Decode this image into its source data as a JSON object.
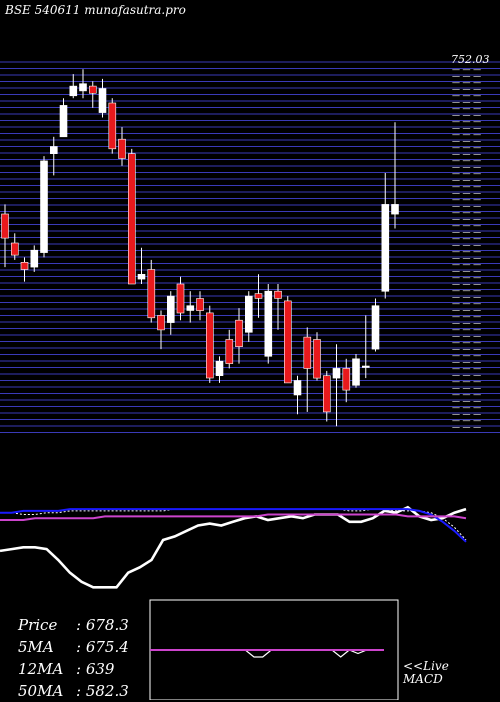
{
  "header": {
    "title": "BSE 540611 munafasutra.pro"
  },
  "chart_data": [
    {
      "type": "candlestick",
      "title": "BSE 540611 munafasutra.pro",
      "price_top_label": "752.03",
      "candles": [
        {
          "o": 712,
          "h": 716,
          "l": 690,
          "c": 702,
          "color": "red"
        },
        {
          "o": 700,
          "h": 704,
          "l": 693,
          "c": 695,
          "color": "red"
        },
        {
          "o": 692,
          "h": 694,
          "l": 684,
          "c": 689,
          "color": "red"
        },
        {
          "o": 690,
          "h": 699,
          "l": 688,
          "c": 697,
          "color": "white"
        },
        {
          "o": 696,
          "h": 736,
          "l": 694,
          "c": 734,
          "color": "white"
        },
        {
          "o": 737,
          "h": 744,
          "l": 728,
          "c": 740,
          "color": "white"
        },
        {
          "o": 744,
          "h": 760,
          "l": 744,
          "c": 757,
          "color": "white"
        },
        {
          "o": 761,
          "h": 770,
          "l": 760,
          "c": 765,
          "color": "white"
        },
        {
          "o": 763,
          "h": 772,
          "l": 760,
          "c": 766,
          "color": "white"
        },
        {
          "o": 765,
          "h": 767,
          "l": 756,
          "c": 762,
          "color": "red"
        },
        {
          "o": 764,
          "h": 768,
          "l": 752,
          "c": 754,
          "color": "white"
        },
        {
          "o": 758,
          "h": 760,
          "l": 737,
          "c": 739,
          "color": "red"
        },
        {
          "o": 743,
          "h": 748,
          "l": 732,
          "c": 735,
          "color": "red"
        },
        {
          "o": 737,
          "h": 739,
          "l": 683,
          "c": 683,
          "color": "red"
        },
        {
          "o": 685,
          "h": 698,
          "l": 683,
          "c": 687,
          "color": "white"
        },
        {
          "o": 689,
          "h": 693,
          "l": 667,
          "c": 669,
          "color": "red"
        },
        {
          "o": 670,
          "h": 672,
          "l": 656,
          "c": 664,
          "color": "red"
        },
        {
          "o": 667,
          "h": 680,
          "l": 662,
          "c": 678,
          "color": "white"
        },
        {
          "o": 683,
          "h": 686,
          "l": 668,
          "c": 671,
          "color": "red"
        },
        {
          "o": 672,
          "h": 680,
          "l": 667,
          "c": 674,
          "color": "white"
        },
        {
          "o": 677,
          "h": 680,
          "l": 668,
          "c": 672,
          "color": "red"
        },
        {
          "o": 671,
          "h": 674,
          "l": 642,
          "c": 644,
          "color": "red"
        },
        {
          "o": 645,
          "h": 653,
          "l": 642,
          "c": 651,
          "color": "white"
        },
        {
          "o": 660,
          "h": 664,
          "l": 648,
          "c": 650,
          "color": "red"
        },
        {
          "o": 657,
          "h": 673,
          "l": 650,
          "c": 668,
          "color": "red"
        },
        {
          "o": 663,
          "h": 680,
          "l": 659,
          "c": 678,
          "color": "white"
        },
        {
          "o": 679,
          "h": 687,
          "l": 669,
          "c": 677,
          "color": "red"
        },
        {
          "o": 653,
          "h": 683,
          "l": 650,
          "c": 680,
          "color": "white"
        },
        {
          "o": 680,
          "h": 683,
          "l": 664,
          "c": 677,
          "color": "red"
        },
        {
          "o": 676,
          "h": 678,
          "l": 642,
          "c": 642,
          "color": "red"
        },
        {
          "o": 643,
          "h": 645,
          "l": 629,
          "c": 637,
          "color": "white"
        },
        {
          "o": 661,
          "h": 665,
          "l": 630,
          "c": 648,
          "color": "red"
        },
        {
          "o": 660,
          "h": 663,
          "l": 643,
          "c": 644,
          "color": "red"
        },
        {
          "o": 645,
          "h": 647,
          "l": 626,
          "c": 630,
          "color": "red"
        },
        {
          "o": 644,
          "h": 658,
          "l": 624,
          "c": 648,
          "color": "white"
        },
        {
          "o": 648,
          "h": 652,
          "l": 634,
          "c": 639,
          "color": "red"
        },
        {
          "o": 641,
          "h": 654,
          "l": 640,
          "c": 652,
          "color": "white"
        },
        {
          "o": 649,
          "h": 670,
          "l": 644,
          "c": 649,
          "color": "white"
        },
        {
          "o": 656,
          "h": 677,
          "l": 655,
          "c": 674,
          "color": "white"
        },
        {
          "o": 680,
          "h": 729,
          "l": 677,
          "c": 716,
          "color": "white"
        },
        {
          "o": 712,
          "h": 750,
          "l": 706,
          "c": 716,
          "color": "white"
        }
      ]
    },
    {
      "type": "line",
      "series": [
        {
          "color": "#ffffff",
          "values": [
            547,
            548,
            549,
            549,
            548,
            542,
            535,
            530,
            527,
            527,
            527,
            535,
            538,
            542,
            553,
            555,
            558,
            561,
            562,
            561,
            563,
            565,
            566,
            564,
            565,
            566,
            565,
            567,
            567,
            567,
            563,
            563,
            565,
            569,
            568,
            571,
            566,
            564,
            565,
            568,
            570
          ]
        },
        {
          "color": "#ffffff",
          "dashed": true,
          "values": [
            568,
            568,
            567,
            567,
            568,
            568,
            569,
            569,
            569,
            569,
            569,
            569,
            569,
            569,
            569,
            570,
            570,
            570,
            570,
            570,
            570,
            570,
            570,
            570,
            570,
            570,
            570,
            570,
            570,
            570,
            569,
            569,
            570,
            570,
            569,
            569,
            569,
            568,
            565,
            560,
            553
          ]
        },
        {
          "color": "#1a1aff",
          "values": [
            568,
            568,
            569,
            569,
            569,
            569,
            570,
            570,
            570,
            570,
            570,
            570,
            570,
            570,
            570,
            570,
            570,
            570,
            570,
            570,
            570,
            570,
            570,
            570,
            570,
            570,
            570,
            570,
            570,
            570,
            570,
            570,
            570,
            570,
            570,
            570,
            569,
            567,
            563,
            558,
            552
          ]
        },
        {
          "color": "#cc44cc",
          "values": [
            564,
            564,
            564,
            565,
            565,
            565,
            565,
            565,
            565,
            566,
            566,
            566,
            566,
            566,
            566,
            566,
            566,
            566,
            566,
            566,
            566,
            566,
            566,
            567,
            567,
            567,
            567,
            567,
            567,
            567,
            567,
            567,
            567,
            567,
            567,
            566,
            566,
            566,
            566,
            566,
            565
          ]
        }
      ]
    },
    {
      "type": "line",
      "series": [
        {
          "color": "#ffffff",
          "values": [
            0,
            0,
            0,
            0,
            0,
            0,
            0,
            0,
            0,
            0,
            0,
            0,
            -1,
            -1,
            0,
            0,
            0,
            0,
            0,
            0,
            0,
            0,
            -1,
            0,
            -0.5,
            0,
            0,
            0
          ]
        },
        {
          "color": "#cc44cc",
          "values": [
            0,
            0,
            0,
            0,
            0,
            0,
            0,
            0,
            0,
            0,
            0,
            0,
            0,
            0,
            0,
            0,
            0,
            0,
            0,
            0,
            0,
            0,
            0,
            0,
            0,
            0,
            0,
            0
          ]
        }
      ]
    }
  ],
  "stats": [
    {
      "label": "Price",
      "value": "678.3"
    },
    {
      "label": "5MA",
      "value": "675.4"
    },
    {
      "label": "12MA",
      "value": "639"
    },
    {
      "label": "50MA",
      "value": "582.3"
    }
  ],
  "macd_label_1": "<<Live",
  "macd_label_2": "MACD"
}
